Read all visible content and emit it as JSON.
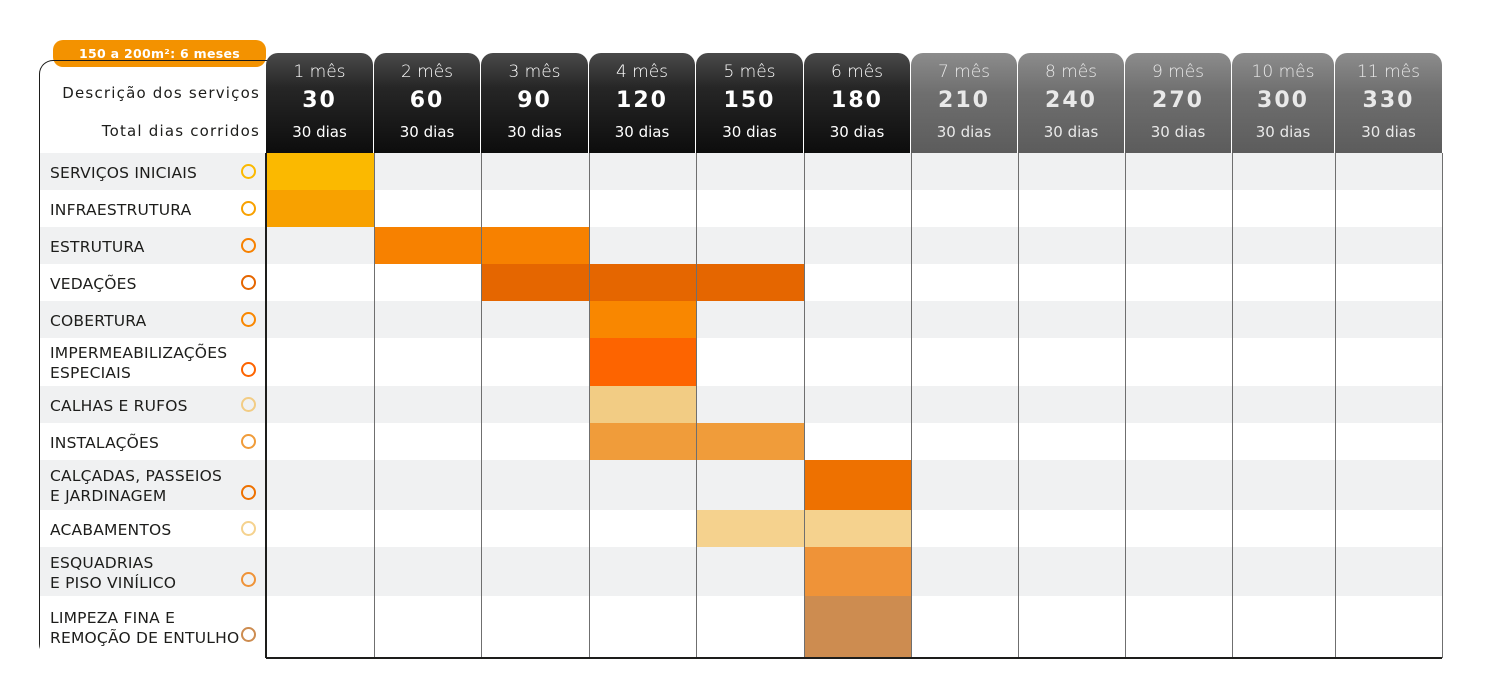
{
  "header": {
    "badge": "150 a 200m²: 6 meses",
    "label_desc": "Descrição dos serviços",
    "label_total": "Total dias corridos"
  },
  "months": [
    {
      "month": "1 mês",
      "days": "30",
      "duration": "30 dias",
      "active": true
    },
    {
      "month": "2 mês",
      "days": "60",
      "duration": "30 dias",
      "active": true
    },
    {
      "month": "3 mês",
      "days": "90",
      "duration": "30 dias",
      "active": true
    },
    {
      "month": "4 mês",
      "days": "120",
      "duration": "30 dias",
      "active": true
    },
    {
      "month": "5 mês",
      "days": "150",
      "duration": "30 dias",
      "active": true
    },
    {
      "month": "6 mês",
      "days": "180",
      "duration": "30 dias",
      "active": true
    },
    {
      "month": "7 mês",
      "days": "210",
      "duration": "30 dias",
      "active": false
    },
    {
      "month": "8 mês",
      "days": "240",
      "duration": "30 dias",
      "active": false
    },
    {
      "month": "9 mês",
      "days": "270",
      "duration": "30 dias",
      "active": false
    },
    {
      "month": "10 mês",
      "days": "300",
      "duration": "30 dias",
      "active": false
    },
    {
      "month": "11 mês",
      "days": "330",
      "duration": "30 dias",
      "active": false
    }
  ],
  "tasks": [
    {
      "label": "SERVIÇOS INICIAIS",
      "color": "#fbb900",
      "months": [
        1
      ]
    },
    {
      "label": "INFRAESTRUTURA",
      "color": "#f8a100",
      "months": [
        1
      ]
    },
    {
      "label": "ESTRUTURA",
      "color": "#f78100",
      "months": [
        2,
        3
      ]
    },
    {
      "label": "VEDAÇÕES",
      "color": "#e56600",
      "months": [
        3,
        4,
        5
      ]
    },
    {
      "label": "COBERTURA",
      "color": "#f98700",
      "months": [
        4
      ]
    },
    {
      "label": "IMPERMEABILIZAÇÕES\nESPECIAIS",
      "color": "#fd6400",
      "months": [
        4
      ]
    },
    {
      "label": "CALHAS E RUFOS",
      "color": "#f2cc84",
      "months": [
        4
      ]
    },
    {
      "label": "INSTALAÇÕES",
      "color": "#f09c3a",
      "months": [
        4,
        5
      ]
    },
    {
      "label": "CALÇADAS, PASSEIOS\nE JARDINAGEM",
      "color": "#ee7100",
      "months": [
        6
      ]
    },
    {
      "label": "ACABAMENTOS",
      "color": "#f5d28e",
      "months": [
        5,
        6
      ]
    },
    {
      "label": "ESQUADRIAS\nE PISO VINÍLICO",
      "color": "#ef9338",
      "months": [
        6
      ]
    },
    {
      "label": "LIMPEZA FINA E\nREMOÇÃO DE ENTULHO",
      "color": "#cd8c50",
      "months": [
        6
      ]
    }
  ]
}
